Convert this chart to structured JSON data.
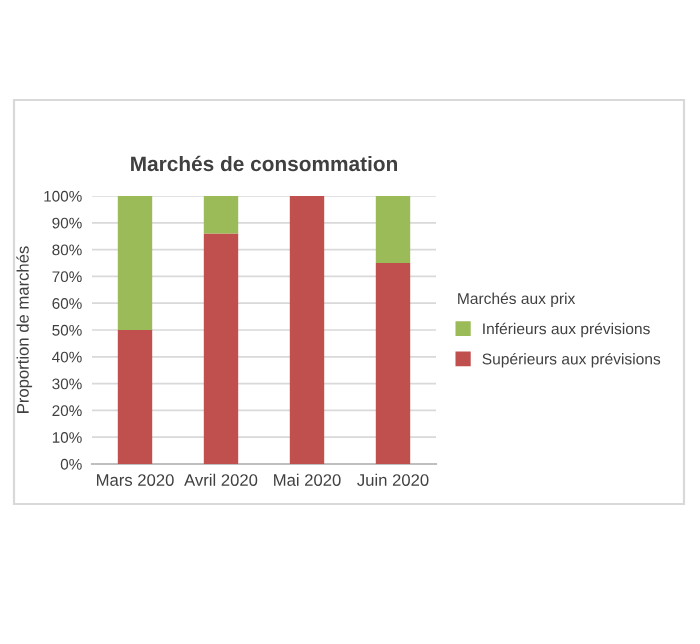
{
  "chart_data": {
    "type": "bar",
    "stacked": true,
    "title": "Marchés de consommation",
    "ylabel": "Proportion de marchés",
    "legend_title": "Marchés aux prix",
    "legend": "right",
    "grid": "y",
    "categories": [
      "Mars 2020",
      "Avril 2020",
      "Mai 2020",
      "Juin 2020"
    ],
    "series": [
      {
        "name": "Supérieurs aux prévisions",
        "color": "#c0504d",
        "values": [
          50,
          86,
          100,
          75
        ]
      },
      {
        "name": "Inférieurs aux prévisions",
        "color": "#9bbb59",
        "values": [
          50,
          14,
          0,
          25
        ]
      }
    ],
    "ylim": [
      0,
      100
    ],
    "yticks": [
      {
        "value": 0,
        "label": "0%"
      },
      {
        "value": 10,
        "label": "10%"
      },
      {
        "value": 20,
        "label": "20%"
      },
      {
        "value": 30,
        "label": "30%"
      },
      {
        "value": 40,
        "label": "40%"
      },
      {
        "value": 50,
        "label": "50%"
      },
      {
        "value": 60,
        "label": "60%"
      },
      {
        "value": 70,
        "label": "70%"
      },
      {
        "value": 80,
        "label": "80%"
      },
      {
        "value": 90,
        "label": "90%"
      },
      {
        "value": 100,
        "label": "100%"
      }
    ]
  }
}
